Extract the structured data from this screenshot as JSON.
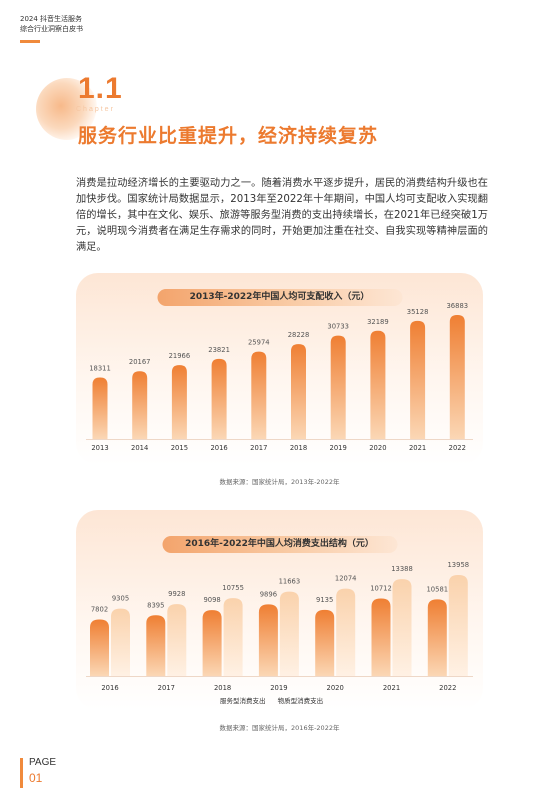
{
  "header": {
    "line1": "2024 抖音生活服务",
    "line2": "综合行业洞察白皮书"
  },
  "chapter": {
    "number": "1.1",
    "word": "Chapter"
  },
  "title": "服务行业比重提升，经济持续复苏",
  "paragraph": "消费是拉动经济增长的主要驱动力之一。随着消费水平逐步提升，居民的消费结构升级也在加快步伐。国家统计局数据显示，2013年至2022年十年期间，中国人均可支配收入实现翻倍的增长，其中在文化、娱乐、旅游等服务型消费的支出持续增长，在2021年已经突破1万元，说明现今消费者在满足生存需求的同时，开始更加注重在社交、自我实现等精神层面的满足。",
  "colors": {
    "accent": "#ec7a2f",
    "bar_dark": "#ef7f33",
    "bar_light": "#fbd7b5"
  },
  "chart_data": [
    {
      "type": "bar",
      "title": "2013年-2022年中国人均可支配收入（元）",
      "categories": [
        "2013",
        "2014",
        "2015",
        "2016",
        "2017",
        "2018",
        "2019",
        "2020",
        "2021",
        "2022"
      ],
      "values": [
        18311,
        20167,
        21966,
        23821,
        25974,
        28228,
        30733,
        32189,
        35128,
        36883
      ],
      "source": "数据来源：国家统计局，2013年-2022年"
    },
    {
      "type": "bar",
      "title": "2016年-2022年中国人均消费支出结构（元）",
      "categories": [
        "2016",
        "2017",
        "2018",
        "2019",
        "2020",
        "2021",
        "2022"
      ],
      "series": [
        {
          "name": "服务型消费支出",
          "values": [
            7802,
            8395,
            9098,
            9896,
            9135,
            10712,
            10581
          ]
        },
        {
          "name": "物质型消费支出",
          "values": [
            9305,
            9928,
            10755,
            11663,
            12074,
            13388,
            13958
          ]
        }
      ],
      "source": "数据来源：国家统计局，2016年-2022年"
    }
  ],
  "footer": {
    "page_label": "PAGE",
    "page_number": "01"
  }
}
